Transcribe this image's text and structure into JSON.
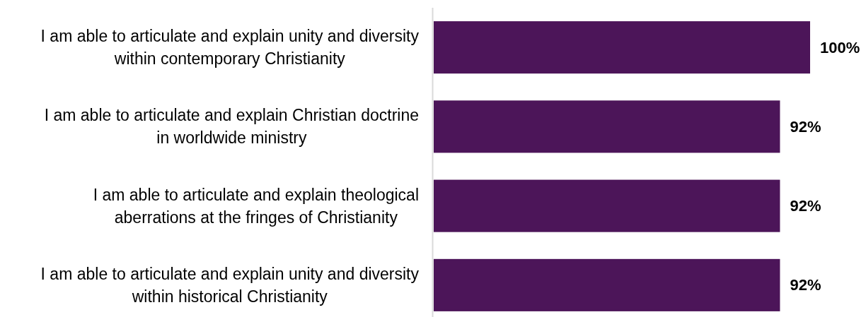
{
  "chart_data": {
    "type": "bar",
    "orientation": "horizontal",
    "categories": [
      "I am able to articulate and explain unity and diversity within contemporary Christianity",
      "I am able to articulate and explain Christian doctrine in worldwide ministry",
      "I am able to articulate and explain theological aberrations at the fringes of Christianity",
      "I am able to articulate and explain unity and diversity within historical Christianity"
    ],
    "values": [
      100,
      92,
      92,
      92
    ],
    "color": "#4c1559",
    "value_labels": [
      "100%",
      "92%",
      "92%",
      "92%"
    ]
  }
}
